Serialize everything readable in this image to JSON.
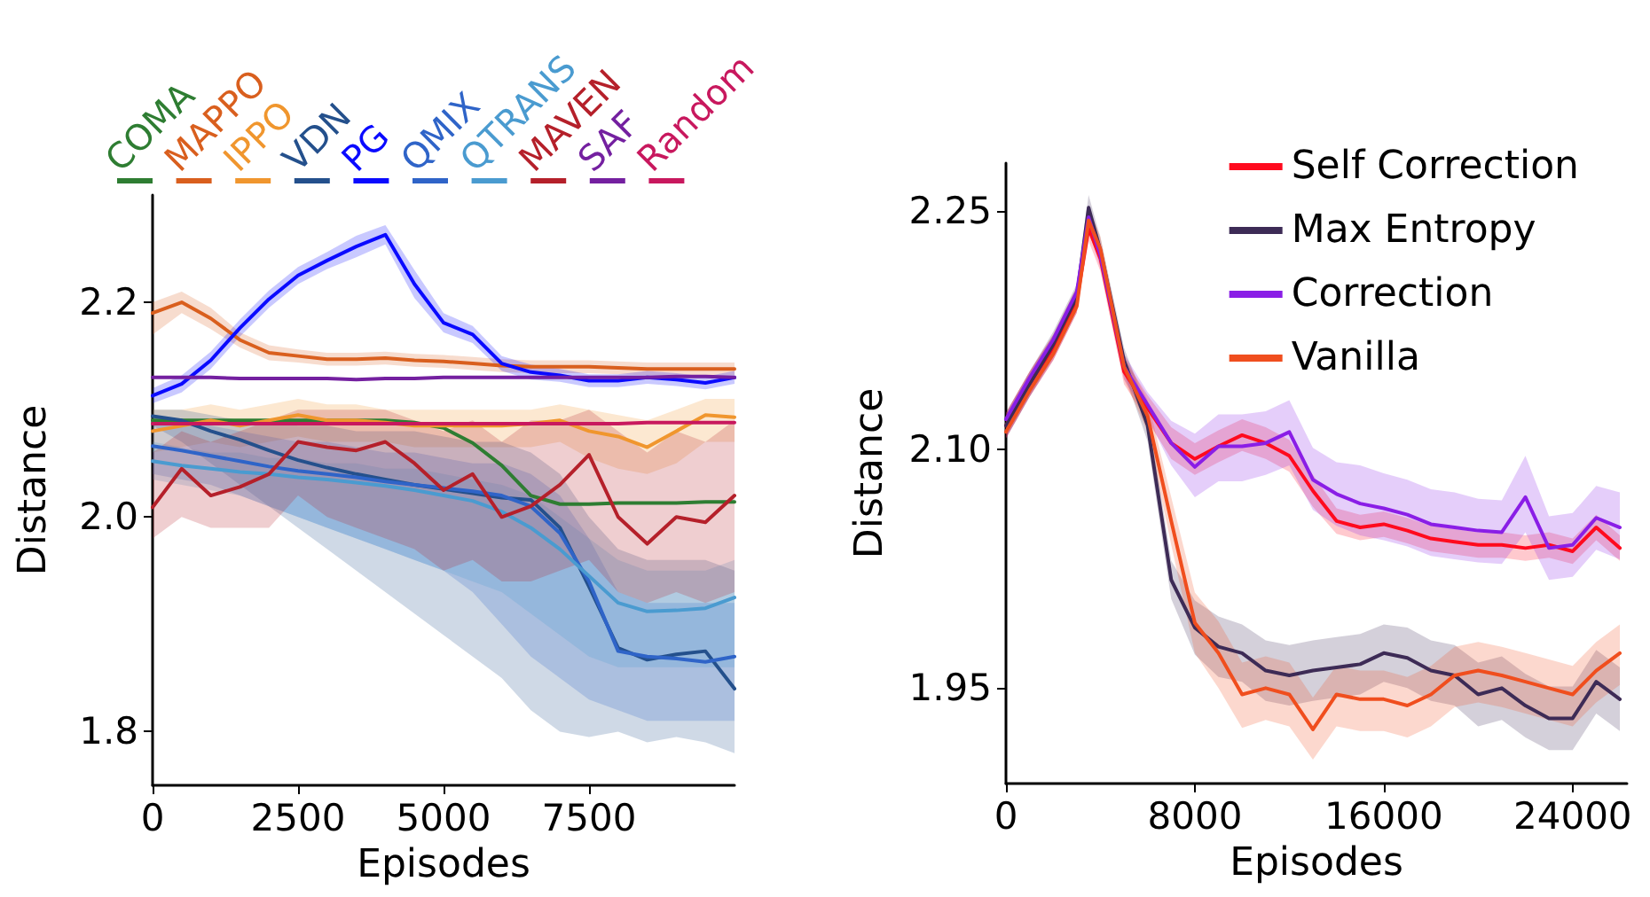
{
  "chart_data": [
    {
      "type": "line",
      "xlabel": "Episodes",
      "ylabel": "Distance",
      "legend": "top",
      "grid": false,
      "marker": "none",
      "line_style": "solid",
      "xlim": [
        0,
        10000
      ],
      "ylim": [
        1.75,
        2.3
      ],
      "xticks": [
        0,
        2500,
        5000,
        7500
      ],
      "yticks": [
        1.8,
        {
          "value": 2,
          "label": "2.0"
        },
        2.2
      ],
      "x": [
        0,
        500,
        1000,
        1500,
        2000,
        2500,
        3000,
        3500,
        4000,
        4500,
        5000,
        5500,
        6000,
        6500,
        7000,
        7500,
        8000,
        8500,
        9000,
        9500,
        10000
      ],
      "series": [
        {
          "name": "COMA",
          "color": "#2e7d32",
          "values": [
            2.09,
            2.09,
            2.09,
            2.09,
            2.09,
            2.09,
            2.09,
            2.09,
            2.09,
            2.088,
            2.083,
            2.069,
            2.048,
            2.02,
            2.012,
            2.012,
            2.013,
            2.013,
            2.013,
            2.014,
            2.014
          ]
        },
        {
          "name": "MAPPO",
          "color": "#d95f1e",
          "values": [
            2.19,
            2.2,
            2.185,
            2.165,
            2.153,
            2.15,
            2.147,
            2.147,
            2.148,
            2.146,
            2.145,
            2.143,
            2.141,
            2.14,
            2.14,
            2.14,
            2.139,
            2.138,
            2.138,
            2.138,
            2.138
          ],
          "upper": [
            2.2,
            2.21,
            2.195,
            2.172,
            2.16,
            2.156,
            2.153,
            2.153,
            2.154,
            2.152,
            2.151,
            2.149,
            2.147,
            2.146,
            2.146,
            2.146,
            2.145,
            2.144,
            2.144,
            2.144,
            2.144
          ],
          "lower": [
            2.17,
            2.19,
            2.175,
            2.158,
            2.146,
            2.144,
            2.141,
            2.141,
            2.142,
            2.14,
            2.139,
            2.137,
            2.135,
            2.134,
            2.134,
            2.134,
            2.133,
            2.132,
            2.132,
            2.132,
            2.132
          ]
        },
        {
          "name": "IPPO",
          "color": "#f0962e",
          "values": [
            2.08,
            2.085,
            2.09,
            2.085,
            2.09,
            2.095,
            2.09,
            2.09,
            2.088,
            2.085,
            2.085,
            2.085,
            2.085,
            2.087,
            2.09,
            2.08,
            2.075,
            2.065,
            2.08,
            2.095,
            2.093
          ],
          "upper": [
            2.1,
            2.1,
            2.105,
            2.1,
            2.105,
            2.11,
            2.105,
            2.105,
            2.1,
            2.1,
            2.1,
            2.1,
            2.1,
            2.1,
            2.105,
            2.1,
            2.095,
            2.09,
            2.1,
            2.11,
            2.11
          ],
          "lower": [
            2.06,
            2.065,
            2.07,
            2.065,
            2.07,
            2.075,
            2.07,
            2.07,
            2.07,
            2.065,
            2.065,
            2.065,
            2.065,
            2.065,
            2.07,
            2.055,
            2.045,
            2.04,
            2.05,
            2.07,
            2.07
          ]
        },
        {
          "name": "VDN",
          "color": "#24508c",
          "values": [
            2.094,
            2.09,
            2.08,
            2.072,
            2.062,
            2.053,
            2.046,
            2.04,
            2.035,
            2.03,
            2.026,
            2.022,
            2.018,
            2.016,
            1.99,
            1.935,
            1.878,
            1.867,
            1.872,
            1.875,
            1.84
          ],
          "upper": [
            2.1,
            2.1,
            2.095,
            2.09,
            2.09,
            2.085,
            2.085,
            2.08,
            2.08,
            2.08,
            2.075,
            2.07,
            2.07,
            2.06,
            2.04,
            2.0,
            1.97,
            1.96,
            1.96,
            1.96,
            1.95
          ],
          "lower": [
            2.085,
            2.07,
            2.05,
            2.03,
            2.01,
            1.99,
            1.97,
            1.95,
            1.93,
            1.91,
            1.89,
            1.87,
            1.85,
            1.82,
            1.8,
            1.795,
            1.8,
            1.79,
            1.795,
            1.79,
            1.78
          ]
        },
        {
          "name": "PG",
          "color": "#0a0aff",
          "values": [
            2.113,
            2.124,
            2.146,
            2.176,
            2.203,
            2.225,
            2.239,
            2.252,
            2.263,
            2.217,
            2.181,
            2.17,
            2.143,
            2.135,
            2.132,
            2.127,
            2.127,
            2.13,
            2.128,
            2.125,
            2.13
          ],
          "upper": [
            2.12,
            2.132,
            2.154,
            2.184,
            2.211,
            2.233,
            2.247,
            2.262,
            2.272,
            2.23,
            2.19,
            2.178,
            2.15,
            2.142,
            2.138,
            2.133,
            2.133,
            2.136,
            2.134,
            2.131,
            2.136
          ],
          "lower": [
            2.106,
            2.116,
            2.138,
            2.168,
            2.195,
            2.217,
            2.231,
            2.242,
            2.254,
            2.204,
            2.172,
            2.162,
            2.136,
            2.128,
            2.126,
            2.121,
            2.121,
            2.124,
            2.122,
            2.119,
            2.124
          ]
        },
        {
          "name": "QMIX",
          "color": "#2f64c8",
          "values": [
            2.066,
            2.062,
            2.057,
            2.052,
            2.047,
            2.043,
            2.04,
            2.037,
            2.033,
            2.03,
            2.027,
            2.024,
            2.02,
            2.01,
            1.985,
            1.94,
            1.875,
            1.87,
            1.868,
            1.865,
            1.87
          ],
          "upper": [
            2.09,
            2.09,
            2.085,
            2.08,
            2.075,
            2.07,
            2.07,
            2.065,
            2.06,
            2.06,
            2.055,
            2.05,
            2.05,
            2.04,
            2.02,
            1.98,
            1.93,
            1.92,
            1.92,
            1.92,
            1.92
          ],
          "lower": [
            2.04,
            2.035,
            2.03,
            2.02,
            2.01,
            2.0,
            1.99,
            1.98,
            1.97,
            1.96,
            1.95,
            1.93,
            1.9,
            1.87,
            1.85,
            1.83,
            1.82,
            1.81,
            1.81,
            1.81,
            1.81
          ]
        },
        {
          "name": "QTRANS",
          "color": "#4a9bd0",
          "values": [
            2.052,
            2.048,
            2.045,
            2.042,
            2.04,
            2.037,
            2.035,
            2.032,
            2.029,
            2.025,
            2.02,
            2.015,
            2.005,
            1.99,
            1.97,
            1.945,
            1.92,
            1.912,
            1.913,
            1.915,
            1.925
          ],
          "upper": [
            2.07,
            2.065,
            2.06,
            2.06,
            2.055,
            2.055,
            2.05,
            2.05,
            2.045,
            2.045,
            2.04,
            2.035,
            2.03,
            2.02,
            2.0,
            1.98,
            1.96,
            1.95,
            1.95,
            1.95,
            1.96
          ],
          "lower": [
            2.035,
            2.03,
            2.025,
            2.02,
            2.01,
            2.0,
            1.99,
            1.98,
            1.97,
            1.96,
            1.95,
            1.94,
            1.93,
            1.91,
            1.89,
            1.87,
            1.86,
            1.86,
            1.86,
            1.86,
            1.86
          ]
        },
        {
          "name": "MAVEN",
          "color": "#b5202a",
          "values": [
            2.009,
            2.045,
            2.02,
            2.028,
            2.04,
            2.07,
            2.065,
            2.062,
            2.07,
            2.05,
            2.025,
            2.04,
            2.0,
            2.01,
            2.03,
            2.058,
            2.0,
            1.975,
            2.0,
            1.995,
            2.02
          ],
          "upper": [
            2.06,
            2.08,
            2.07,
            2.08,
            2.09,
            2.1,
            2.1,
            2.1,
            2.1,
            2.09,
            2.08,
            2.09,
            2.07,
            2.09,
            2.09,
            2.1,
            2.08,
            2.06,
            2.08,
            2.07,
            2.09
          ],
          "lower": [
            1.98,
            2.0,
            1.99,
            1.99,
            1.99,
            2.02,
            2.0,
            1.99,
            1.98,
            1.97,
            1.95,
            1.96,
            1.94,
            1.94,
            1.95,
            1.96,
            1.93,
            1.92,
            1.93,
            1.92,
            1.93
          ]
        },
        {
          "name": "SAF",
          "color": "#7420a0",
          "values": [
            2.13,
            2.13,
            2.13,
            2.129,
            2.129,
            2.129,
            2.129,
            2.128,
            2.129,
            2.129,
            2.13,
            2.13,
            2.13,
            2.13,
            2.13,
            2.13,
            2.13,
            2.13,
            2.131,
            2.131,
            2.13
          ]
        },
        {
          "name": "Random",
          "color": "#c8185e",
          "values": [
            2.087,
            2.087,
            2.087,
            2.087,
            2.087,
            2.087,
            2.087,
            2.087,
            2.087,
            2.087,
            2.087,
            2.087,
            2.087,
            2.087,
            2.087,
            2.087,
            2.087,
            2.088,
            2.088,
            2.088,
            2.088
          ]
        }
      ]
    },
    {
      "type": "line",
      "xlabel": "Episodes",
      "ylabel": "Distance",
      "legend": "top right",
      "grid": false,
      "marker": "none",
      "line_style": "solid",
      "xlim": [
        0,
        26300
      ],
      "ylim": [
        1.89,
        2.28
      ],
      "xticks": [
        0,
        8000,
        16000,
        24000
      ],
      "yticks": [
        1.95,
        {
          "value": 2.1,
          "label": "2.10"
        },
        2.25
      ],
      "x": [
        0,
        1000,
        2000,
        3000,
        3500,
        4000,
        5000,
        6000,
        7000,
        8000,
        9000,
        10000,
        11000,
        12000,
        13000,
        14000,
        15000,
        16000,
        17000,
        18000,
        19000,
        20000,
        21000,
        22000,
        23000,
        24000,
        25000,
        26000
      ],
      "series": [
        {
          "name": "Self Correction",
          "color": "#ff0a1e",
          "values": [
            2.115,
            2.141,
            2.164,
            2.194,
            2.239,
            2.22,
            2.149,
            2.126,
            2.104,
            2.094,
            2.102,
            2.109,
            2.104,
            2.096,
            2.074,
            2.055,
            2.051,
            2.053,
            2.049,
            2.044,
            2.042,
            2.04,
            2.04,
            2.038,
            2.04,
            2.036,
            2.051,
            2.038
          ],
          "upper": [
            2.123,
            2.149,
            2.172,
            2.202,
            2.247,
            2.228,
            2.157,
            2.134,
            2.114,
            2.104,
            2.112,
            2.119,
            2.114,
            2.106,
            2.084,
            2.063,
            2.059,
            2.061,
            2.057,
            2.052,
            2.05,
            2.048,
            2.048,
            2.046,
            2.048,
            2.044,
            2.059,
            2.046
          ],
          "lower": [
            2.107,
            2.133,
            2.156,
            2.186,
            2.231,
            2.212,
            2.141,
            2.118,
            2.094,
            2.084,
            2.092,
            2.099,
            2.094,
            2.086,
            2.064,
            2.047,
            2.043,
            2.045,
            2.041,
            2.036,
            2.034,
            2.032,
            2.032,
            2.03,
            2.032,
            2.028,
            2.043,
            2.03
          ]
        },
        {
          "name": "Max Entropy",
          "color": "#3d2b56",
          "values": [
            2.115,
            2.141,
            2.166,
            2.196,
            2.252,
            2.225,
            2.156,
            2.115,
            2.018,
            1.988,
            1.976,
            1.972,
            1.961,
            1.958,
            1.961,
            1.963,
            1.965,
            1.972,
            1.969,
            1.961,
            1.958,
            1.946,
            1.95,
            1.939,
            1.931,
            1.931,
            1.954,
            1.943
          ],
          "upper": [
            2.123,
            2.149,
            2.174,
            2.204,
            2.26,
            2.233,
            2.164,
            2.125,
            2.03,
            2.005,
            1.995,
            1.99,
            1.98,
            1.977,
            1.98,
            1.982,
            1.984,
            1.99,
            1.988,
            1.98,
            1.977,
            1.966,
            1.97,
            1.959,
            1.951,
            1.951,
            1.974,
            1.963
          ],
          "lower": [
            2.107,
            2.133,
            2.158,
            2.188,
            2.244,
            2.217,
            2.148,
            2.105,
            2.006,
            1.971,
            1.957,
            1.954,
            1.942,
            1.939,
            1.942,
            1.944,
            1.946,
            1.954,
            1.95,
            1.942,
            1.939,
            1.926,
            1.93,
            1.919,
            1.911,
            1.911,
            1.934,
            1.923
          ]
        },
        {
          "name": "Correction",
          "color": "#8a1ee6",
          "values": [
            2.119,
            2.145,
            2.169,
            2.199,
            2.246,
            2.222,
            2.152,
            2.128,
            2.104,
            2.089,
            2.102,
            2.102,
            2.104,
            2.111,
            2.081,
            2.072,
            2.066,
            2.063,
            2.059,
            2.053,
            2.051,
            2.049,
            2.048,
            2.07,
            2.038,
            2.04,
            2.057,
            2.051
          ],
          "upper": [
            2.123,
            2.149,
            2.172,
            2.202,
            2.254,
            2.23,
            2.16,
            2.136,
            2.118,
            2.11,
            2.122,
            2.122,
            2.124,
            2.131,
            2.101,
            2.092,
            2.09,
            2.085,
            2.081,
            2.075,
            2.073,
            2.069,
            2.068,
            2.096,
            2.058,
            2.06,
            2.077,
            2.073
          ],
          "lower": [
            2.107,
            2.133,
            2.156,
            2.186,
            2.238,
            2.214,
            2.144,
            2.12,
            2.09,
            2.07,
            2.08,
            2.08,
            2.084,
            2.09,
            2.062,
            2.052,
            2.046,
            2.043,
            2.039,
            2.033,
            2.031,
            2.029,
            2.028,
            2.048,
            2.018,
            2.02,
            2.037,
            2.031
          ]
        },
        {
          "name": "Vanilla",
          "color": "#f04e1e",
          "values": [
            2.111,
            2.137,
            2.16,
            2.19,
            2.244,
            2.226,
            2.152,
            2.121,
            2.055,
            1.991,
            1.972,
            1.946,
            1.95,
            1.946,
            1.924,
            1.946,
            1.943,
            1.943,
            1.939,
            1.946,
            1.958,
            1.961,
            1.958,
            1.954,
            1.95,
            1.946,
            1.961,
            1.972
          ],
          "upper": [
            2.123,
            2.149,
            2.172,
            2.202,
            2.252,
            2.234,
            2.16,
            2.131,
            2.07,
            2.01,
            1.992,
            1.966,
            1.97,
            1.966,
            1.944,
            1.964,
            1.961,
            1.961,
            1.957,
            1.964,
            1.976,
            1.979,
            1.976,
            1.972,
            1.968,
            1.964,
            1.979,
            1.99
          ],
          "lower": [
            2.107,
            2.133,
            2.156,
            2.186,
            2.236,
            2.218,
            2.144,
            2.111,
            2.04,
            1.972,
            1.95,
            1.925,
            1.93,
            1.926,
            1.905,
            1.926,
            1.923,
            1.923,
            1.919,
            1.926,
            1.938,
            1.941,
            1.938,
            1.934,
            1.93,
            1.926,
            1.941,
            1.952
          ]
        }
      ]
    }
  ]
}
